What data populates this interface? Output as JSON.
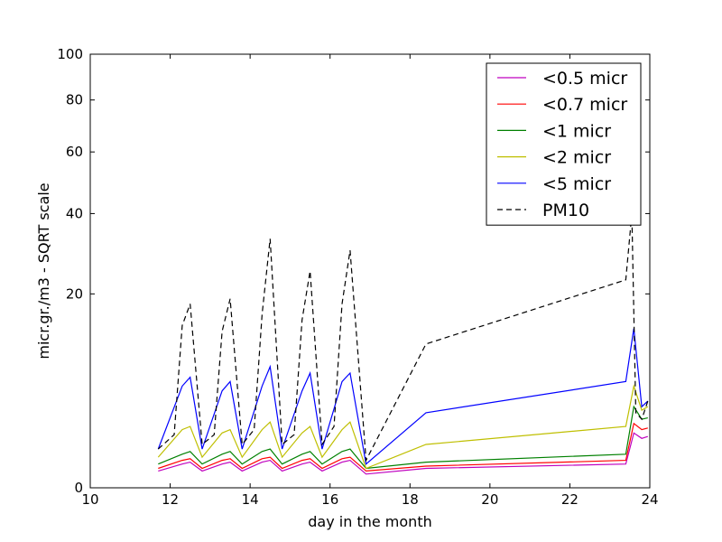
{
  "chart_data": {
    "type": "line",
    "title": "",
    "xlabel": "day in the month",
    "ylabel": "micr.gr./m3 - SQRT scale",
    "xlim": [
      10,
      24
    ],
    "ylim": [
      0,
      100
    ],
    "y_scale": "sqrt",
    "grid": false,
    "legend_position": "top-right",
    "xticks": [
      10,
      12,
      14,
      16,
      18,
      20,
      22,
      24
    ],
    "xtick_labels": [
      "10",
      "12",
      "14",
      "16",
      "18",
      "20",
      "22",
      "24"
    ],
    "yticks": [
      0,
      20,
      40,
      60,
      80,
      100
    ],
    "ytick_labels": [
      "0",
      "20",
      "40",
      "60",
      "80",
      "100"
    ],
    "x_range_of_data": [
      11.7,
      23.95
    ],
    "legend": [
      "<0.5 micr",
      "<0.7 micr",
      "<1 micr",
      "<2 micr",
      "<5 micr",
      "PM10"
    ],
    "series": [
      {
        "name": "<0.5 micr",
        "color": "#bf00bf",
        "style": "solid",
        "x": [
          11.7,
          12.3,
          12.5,
          12.8,
          13.3,
          13.5,
          13.8,
          14.3,
          14.5,
          14.8,
          15.3,
          15.5,
          15.8,
          16.3,
          16.5,
          16.9,
          18.4,
          23.4,
          23.6,
          23.8,
          23.95
        ],
        "y": [
          0.15,
          0.3,
          0.35,
          0.15,
          0.3,
          0.35,
          0.15,
          0.35,
          0.4,
          0.15,
          0.3,
          0.35,
          0.15,
          0.35,
          0.4,
          0.1,
          0.2,
          0.3,
          1.6,
          1.3,
          1.4
        ]
      },
      {
        "name": "<0.7 micr",
        "color": "#ff0000",
        "style": "solid",
        "x": [
          11.7,
          12.3,
          12.5,
          12.8,
          13.3,
          13.5,
          13.8,
          14.3,
          14.5,
          14.8,
          15.3,
          15.5,
          15.8,
          16.3,
          16.5,
          16.9,
          18.4,
          23.4,
          23.6,
          23.8,
          23.95
        ],
        "y": [
          0.2,
          0.4,
          0.45,
          0.2,
          0.4,
          0.45,
          0.2,
          0.45,
          0.5,
          0.2,
          0.4,
          0.45,
          0.2,
          0.45,
          0.5,
          0.15,
          0.25,
          0.4,
          2.2,
          1.8,
          1.9
        ]
      },
      {
        "name": "<1 micr",
        "color": "#008000",
        "style": "solid",
        "x": [
          11.7,
          12.3,
          12.5,
          12.8,
          13.3,
          13.5,
          13.8,
          14.3,
          14.5,
          14.8,
          15.3,
          15.5,
          15.8,
          16.3,
          16.5,
          16.9,
          18.4,
          23.4,
          23.6,
          23.8,
          23.95
        ],
        "y": [
          0.3,
          0.6,
          0.7,
          0.3,
          0.6,
          0.7,
          0.3,
          0.7,
          0.8,
          0.3,
          0.6,
          0.7,
          0.3,
          0.7,
          0.8,
          0.2,
          0.35,
          0.6,
          3.5,
          2.5,
          2.6
        ]
      },
      {
        "name": "<2 micr",
        "color": "#bfbf00",
        "style": "solid",
        "x": [
          11.7,
          12.3,
          12.5,
          12.8,
          13.3,
          13.5,
          13.8,
          14.3,
          14.5,
          14.8,
          15.3,
          15.5,
          15.8,
          16.3,
          16.5,
          16.9,
          18.4,
          23.4,
          23.6,
          23.8,
          23.95
        ],
        "y": [
          0.5,
          1.8,
          2.0,
          0.5,
          1.6,
          1.8,
          0.5,
          1.8,
          2.3,
          0.5,
          1.6,
          2.0,
          0.5,
          1.8,
          2.3,
          0.2,
          1.0,
          2.0,
          5.5,
          3.2,
          3.5
        ]
      },
      {
        "name": "<5 micr",
        "color": "#0000ff",
        "style": "solid",
        "x": [
          11.7,
          12.3,
          12.5,
          12.8,
          13.3,
          13.5,
          13.8,
          14.3,
          14.5,
          14.8,
          15.3,
          15.5,
          15.8,
          16.3,
          16.5,
          16.9,
          18.4,
          23.4,
          23.6,
          23.8,
          23.95
        ],
        "y": [
          0.8,
          5.5,
          6.5,
          0.8,
          5.0,
          6.0,
          0.8,
          5.5,
          7.8,
          0.8,
          5.0,
          7.0,
          0.8,
          6.0,
          7.0,
          0.3,
          3.0,
          6.0,
          13.5,
          3.5,
          4.0
        ]
      },
      {
        "name": "PM10",
        "color": "#000000",
        "style": "dashed",
        "x": [
          11.7,
          12.1,
          12.3,
          12.5,
          12.8,
          13.1,
          13.3,
          13.5,
          13.8,
          14.1,
          14.3,
          14.5,
          14.8,
          15.1,
          15.3,
          15.5,
          15.8,
          16.1,
          16.3,
          16.5,
          16.9,
          18.4,
          23.4,
          23.55,
          23.65,
          23.8,
          23.95
        ],
        "y": [
          0.8,
          1.5,
          14.0,
          18.0,
          1.0,
          1.5,
          13.0,
          19.0,
          1.0,
          1.8,
          16.0,
          33.0,
          1.0,
          1.5,
          15.0,
          25.0,
          1.0,
          2.0,
          18.0,
          30.0,
          0.4,
          11.0,
          23.0,
          40.0,
          3.0,
          2.5,
          4.0
        ]
      }
    ]
  }
}
